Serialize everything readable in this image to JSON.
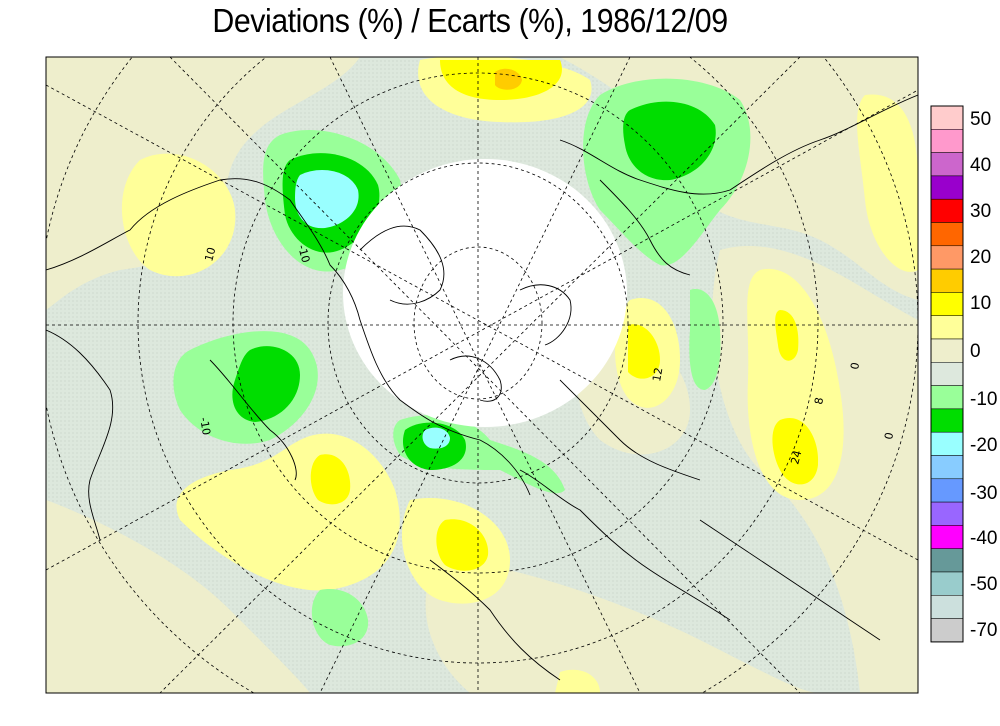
{
  "title": "Deviations (%) / Ecarts (%), 1986/12/09",
  "legend": {
    "labels": [
      "50",
      "40",
      "30",
      "20",
      "10",
      "0",
      "-10",
      "-20",
      "-30",
      "-40",
      "-50",
      "-70"
    ],
    "swatches": [
      "#ffcccc",
      "#ff99cc",
      "#cc66cc",
      "#9900cc",
      "#ff0000",
      "#ff6600",
      "#ff9966",
      "#ffcc00",
      "#ffff00",
      "#ffff99",
      "#eeeecc",
      "#dde8dd",
      "#99ff99",
      "#00dd00",
      "#99ffff",
      "#88ccff",
      "#6699ff",
      "#9966ff",
      "#ff00ff",
      "#669999",
      "#99cccc",
      "#cce0dd",
      "#cccccc"
    ]
  },
  "contour_labels": [
    "10",
    "-10",
    "-10",
    "12",
    "8",
    "24",
    "0",
    "0"
  ],
  "colors": {
    "pos10": "#ffff99",
    "pos20": "#ffff00",
    "zero": "#eeeecc",
    "zeroneg": "#dde8dd",
    "neg10": "#99ff99",
    "neg20": "#00dd00",
    "neg30": "#99ffff"
  }
}
